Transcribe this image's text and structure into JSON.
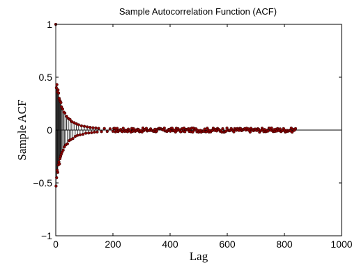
{
  "chart_data": {
    "type": "stem",
    "title": "Sample Autocorrelation Function (ACF)",
    "xlabel": "Lag",
    "ylabel": "Sample ACF",
    "xlim": [
      0,
      1000
    ],
    "ylim": [
      -1,
      1
    ],
    "xticks": [
      0,
      200,
      400,
      600,
      800,
      1000
    ],
    "yticks": [
      -1,
      -0.5,
      0,
      0.5,
      1
    ],
    "xtick_labels": [
      "0",
      "200",
      "400",
      "600",
      "800",
      "1000"
    ],
    "ytick_labels": [
      "−1",
      "−0.5",
      "0",
      "0.5",
      "1"
    ],
    "grid": false,
    "max_lag": 840,
    "series": [
      {
        "x": [
          0,
          1,
          2,
          3,
          4,
          5,
          6,
          7,
          8,
          9,
          10,
          11,
          12,
          13,
          14,
          15,
          16,
          17,
          18,
          19,
          20,
          22,
          24,
          26,
          28,
          30,
          32,
          35,
          38,
          41,
          44,
          47,
          50,
          53,
          56,
          60,
          64,
          68,
          72,
          76,
          80,
          85,
          90,
          95,
          100,
          105,
          110,
          115,
          120,
          125,
          130,
          135,
          140,
          145,
          150,
          160,
          170,
          180,
          190,
          200
        ],
        "y": [
          1.0,
          -0.53,
          0.4,
          -0.45,
          0.43,
          -0.38,
          0.36,
          -0.4,
          0.38,
          -0.33,
          0.35,
          -0.3,
          0.3,
          -0.32,
          0.28,
          -0.27,
          0.27,
          -0.25,
          0.26,
          -0.23,
          0.22,
          -0.21,
          0.2,
          -0.19,
          0.17,
          -0.16,
          0.16,
          -0.14,
          0.13,
          -0.13,
          0.11,
          -0.1,
          0.1,
          -0.09,
          0.08,
          -0.08,
          0.07,
          -0.06,
          0.06,
          -0.05,
          0.05,
          -0.045,
          0.04,
          -0.04,
          0.035,
          -0.03,
          0.03,
          -0.028,
          0.025,
          -0.025,
          0.022,
          -0.02,
          0.02,
          -0.018,
          0.016,
          -0.015,
          0.015,
          -0.013,
          0.012,
          -0.012
        ],
        "tail_amplitude": 0.02,
        "stem_color": "#1a1a1a",
        "marker_color": "#8b0000"
      }
    ],
    "baseline_color": "#000000"
  }
}
